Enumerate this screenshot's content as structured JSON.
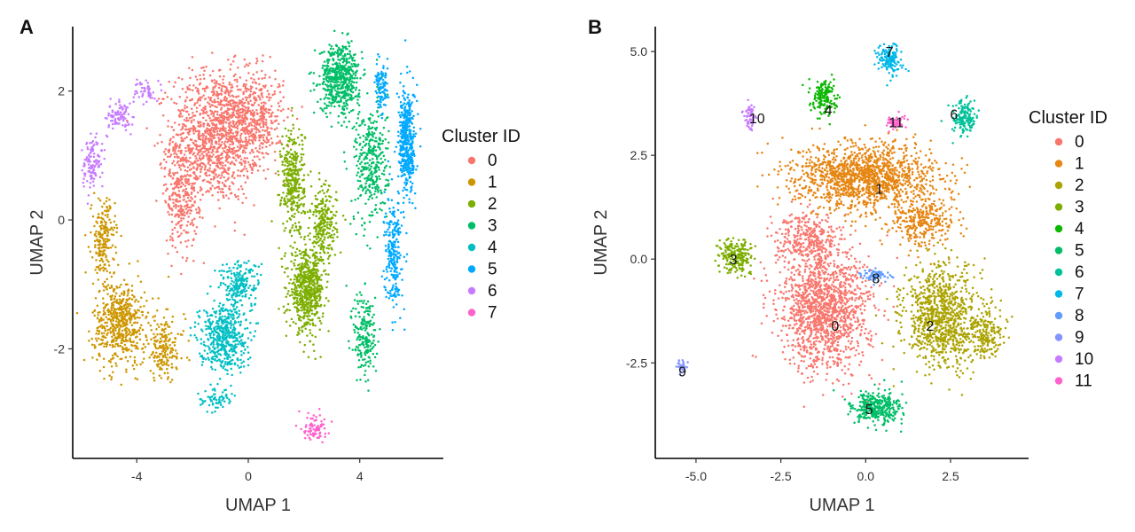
{
  "chart_data": [
    {
      "type": "scatter",
      "panel": "A",
      "title": "",
      "xlabel": "UMAP 1",
      "ylabel": "UMAP 2",
      "xlim": [
        -6.3,
        7.0
      ],
      "ylim": [
        -3.7,
        3.0
      ],
      "xticks": [
        -4,
        0,
        4
      ],
      "xtick_labels": [
        "-4",
        "0",
        "4"
      ],
      "yticks": [
        -2,
        0,
        2
      ],
      "ytick_labels": [
        "-2",
        "0",
        "2"
      ],
      "grid": false,
      "legend": {
        "title": "Cluster ID",
        "placement": "right"
      },
      "series": [
        {
          "name": "0",
          "color": "#F8766D",
          "regions": [
            {
              "center": [
                -1.2,
                1.3
              ],
              "spread": [
                1.3,
                0.85
              ],
              "n": 1100
            },
            {
              "center": [
                0.2,
                1.6
              ],
              "spread": [
                0.9,
                0.6
              ],
              "n": 450
            },
            {
              "center": [
                -2.4,
                0.4
              ],
              "spread": [
                0.5,
                0.7
              ],
              "n": 300
            }
          ]
        },
        {
          "name": "1",
          "color": "#CD9600",
          "regions": [
            {
              "center": [
                -4.6,
                -1.6
              ],
              "spread": [
                0.8,
                0.55
              ],
              "n": 550
            },
            {
              "center": [
                -5.2,
                -0.3
              ],
              "spread": [
                0.35,
                0.5
              ],
              "n": 200
            },
            {
              "center": [
                -3.0,
                -2.0
              ],
              "spread": [
                0.6,
                0.4
              ],
              "n": 180
            }
          ]
        },
        {
          "name": "2",
          "color": "#7CAE00",
          "regions": [
            {
              "center": [
                2.1,
                -1.1
              ],
              "spread": [
                0.5,
                0.5
              ],
              "n": 600
            },
            {
              "center": [
                1.6,
                0.6
              ],
              "spread": [
                0.35,
                0.7
              ],
              "n": 350
            },
            {
              "center": [
                2.7,
                -0.1
              ],
              "spread": [
                0.4,
                0.5
              ],
              "n": 250
            }
          ]
        },
        {
          "name": "3",
          "color": "#00BE67",
          "regions": [
            {
              "center": [
                3.3,
                2.2
              ],
              "spread": [
                0.6,
                0.45
              ],
              "n": 550
            },
            {
              "center": [
                4.4,
                0.9
              ],
              "spread": [
                0.5,
                0.8
              ],
              "n": 350
            },
            {
              "center": [
                4.2,
                -1.8
              ],
              "spread": [
                0.35,
                0.6
              ],
              "n": 200
            }
          ]
        },
        {
          "name": "4",
          "color": "#00BFC4",
          "regions": [
            {
              "center": [
                -0.9,
                -1.8
              ],
              "spread": [
                0.7,
                0.45
              ],
              "n": 500
            },
            {
              "center": [
                -0.3,
                -1.0
              ],
              "spread": [
                0.6,
                0.3
              ],
              "n": 200
            },
            {
              "center": [
                -1.2,
                -2.8
              ],
              "spread": [
                0.5,
                0.15
              ],
              "n": 60
            }
          ]
        },
        {
          "name": "5",
          "color": "#00A9FF",
          "regions": [
            {
              "center": [
                5.7,
                1.2
              ],
              "spread": [
                0.25,
                0.7
              ],
              "n": 450
            },
            {
              "center": [
                5.2,
                -0.5
              ],
              "spread": [
                0.25,
                0.7
              ],
              "n": 250
            },
            {
              "center": [
                4.8,
                2.0
              ],
              "spread": [
                0.2,
                0.3
              ],
              "n": 100
            }
          ]
        },
        {
          "name": "6",
          "color": "#C77CFF",
          "regions": [
            {
              "center": [
                -5.6,
                0.9
              ],
              "spread": [
                0.3,
                0.35
              ],
              "n": 120
            },
            {
              "center": [
                -4.6,
                1.6
              ],
              "spread": [
                0.4,
                0.2
              ],
              "n": 90
            },
            {
              "center": [
                -3.7,
                2.0
              ],
              "spread": [
                0.3,
                0.15
              ],
              "n": 50
            }
          ]
        },
        {
          "name": "7",
          "color": "#FF61CC",
          "regions": [
            {
              "center": [
                2.4,
                -3.2
              ],
              "spread": [
                0.35,
                0.2
              ],
              "n": 80
            }
          ]
        }
      ]
    },
    {
      "type": "scatter",
      "panel": "B",
      "title": "",
      "xlabel": "UMAP 1",
      "ylabel": "UMAP 2",
      "xlim": [
        -6.2,
        4.8
      ],
      "ylim": [
        -4.8,
        5.6
      ],
      "xticks": [
        -5.0,
        -2.5,
        0.0,
        2.5
      ],
      "xtick_labels": [
        "-5.0",
        "-2.5",
        "0.0",
        "2.5"
      ],
      "yticks": [
        -2.5,
        0.0,
        2.5,
        5.0
      ],
      "ytick_labels": [
        "-2.5",
        "0.0",
        "2.5",
        "5.0"
      ],
      "grid": false,
      "legend": {
        "title": "Cluster ID",
        "placement": "right"
      },
      "cluster_labels": [
        {
          "text": "0",
          "x": -0.9,
          "y": -1.6
        },
        {
          "text": "1",
          "x": 0.4,
          "y": 1.7
        },
        {
          "text": "2",
          "x": 1.9,
          "y": -1.6
        },
        {
          "text": "3",
          "x": -3.9,
          "y": 0.0
        },
        {
          "text": "4",
          "x": -1.1,
          "y": 3.6
        },
        {
          "text": "5",
          "x": 0.1,
          "y": -3.6
        },
        {
          "text": "6",
          "x": 2.6,
          "y": 3.5
        },
        {
          "text": "7",
          "x": 0.7,
          "y": 5.0
        },
        {
          "text": "8",
          "x": 0.3,
          "y": -0.45
        },
        {
          "text": "9",
          "x": -5.4,
          "y": -2.7
        },
        {
          "text": "10",
          "x": -3.2,
          "y": 3.4
        },
        {
          "text": "11",
          "x": 0.9,
          "y": 3.3
        }
      ],
      "series": [
        {
          "name": "0",
          "color": "#F8766D",
          "regions": [
            {
              "center": [
                -1.2,
                -1.2
              ],
              "spread": [
                1.1,
                1.2
              ],
              "n": 1400
            },
            {
              "center": [
                -1.7,
                0.5
              ],
              "spread": [
                0.8,
                0.5
              ],
              "n": 300
            }
          ]
        },
        {
          "name": "1",
          "color": "#E68613",
          "regions": [
            {
              "center": [
                0.0,
                2.0
              ],
              "spread": [
                1.7,
                0.65
              ],
              "n": 1400
            },
            {
              "center": [
                1.7,
                0.9
              ],
              "spread": [
                0.8,
                0.5
              ],
              "n": 300
            }
          ]
        },
        {
          "name": "2",
          "color": "#ABA300",
          "regions": [
            {
              "center": [
                2.2,
                -1.4
              ],
              "spread": [
                0.9,
                1.0
              ],
              "n": 900
            },
            {
              "center": [
                3.5,
                -1.8
              ],
              "spread": [
                0.5,
                0.5
              ],
              "n": 200
            }
          ]
        },
        {
          "name": "3",
          "color": "#7CAE00",
          "regions": [
            {
              "center": [
                -3.8,
                0.1
              ],
              "spread": [
                0.4,
                0.35
              ],
              "n": 200
            }
          ]
        },
        {
          "name": "4",
          "color": "#0CB702",
          "regions": [
            {
              "center": [
                -1.2,
                3.9
              ],
              "spread": [
                0.3,
                0.35
              ],
              "n": 170
            }
          ]
        },
        {
          "name": "5",
          "color": "#00BE67",
          "regions": [
            {
              "center": [
                0.3,
                -3.6
              ],
              "spread": [
                0.6,
                0.35
              ],
              "n": 350
            }
          ]
        },
        {
          "name": "6",
          "color": "#00C19A",
          "regions": [
            {
              "center": [
                2.9,
                3.4
              ],
              "spread": [
                0.3,
                0.35
              ],
              "n": 150
            }
          ]
        },
        {
          "name": "7",
          "color": "#00B8E7",
          "regions": [
            {
              "center": [
                0.7,
                4.8
              ],
              "spread": [
                0.3,
                0.3
              ],
              "n": 150
            }
          ]
        },
        {
          "name": "8",
          "color": "#619CFF",
          "regions": [
            {
              "center": [
                0.3,
                -0.4
              ],
              "spread": [
                0.35,
                0.12
              ],
              "n": 70
            }
          ]
        },
        {
          "name": "9",
          "color": "#8494FF",
          "regions": [
            {
              "center": [
                -5.4,
                -2.6
              ],
              "spread": [
                0.12,
                0.15
              ],
              "n": 35
            }
          ]
        },
        {
          "name": "10",
          "color": "#C77CFF",
          "regions": [
            {
              "center": [
                -3.4,
                3.4
              ],
              "spread": [
                0.15,
                0.25
              ],
              "n": 60
            }
          ]
        },
        {
          "name": "11",
          "color": "#FF61CC",
          "regions": [
            {
              "center": [
                0.9,
                3.3
              ],
              "spread": [
                0.25,
                0.15
              ],
              "n": 60
            }
          ]
        }
      ]
    }
  ]
}
